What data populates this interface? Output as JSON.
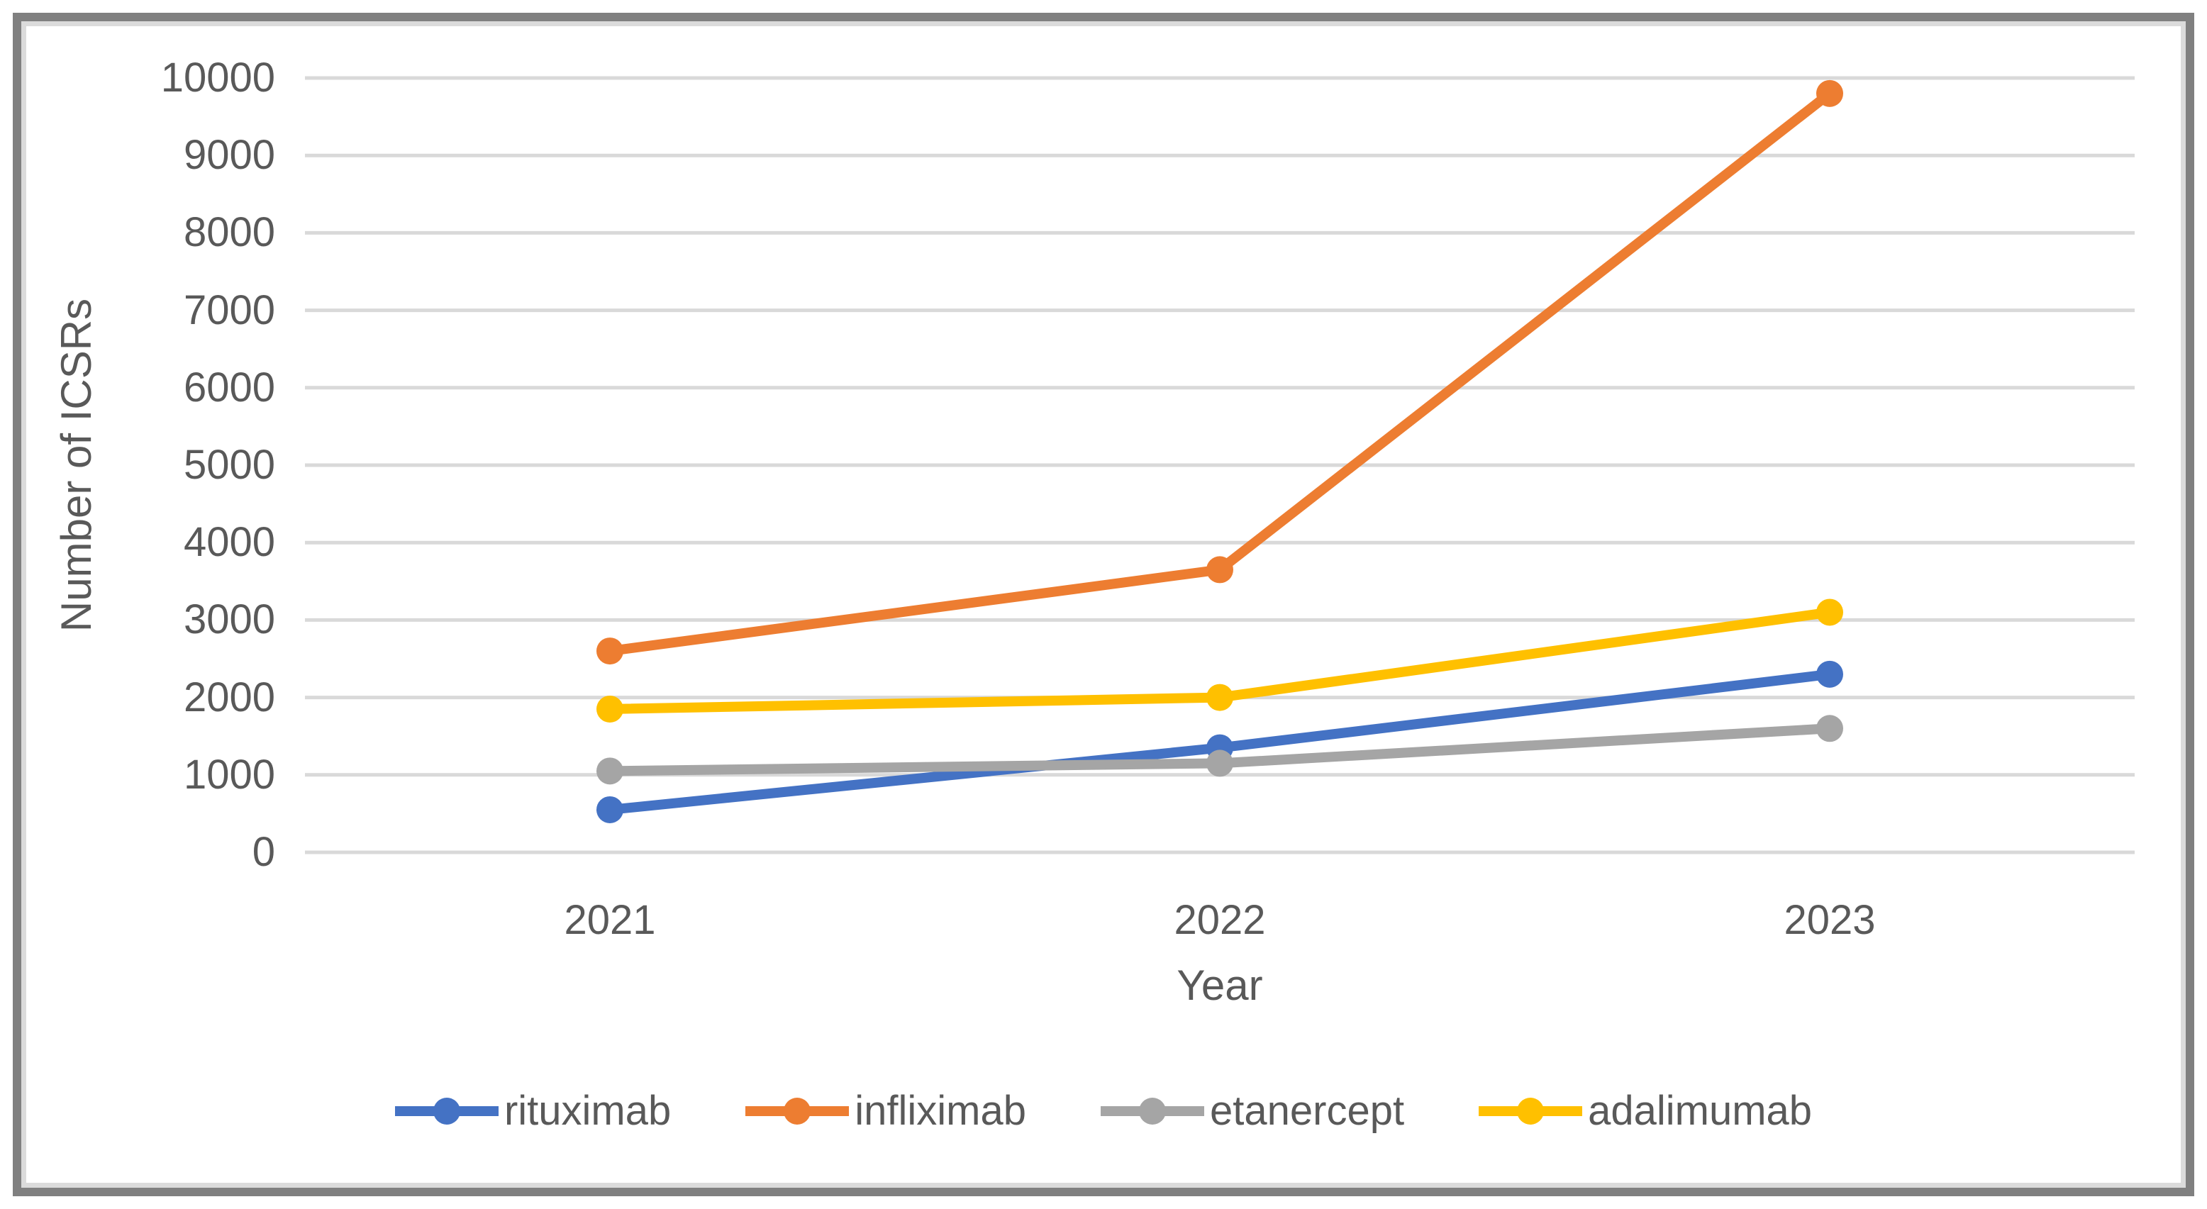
{
  "page": {
    "background": "#FFFFFF",
    "frame_border_color": "#808080",
    "frame_inner_line_color": "#DBDBDB"
  },
  "chart_data": {
    "type": "line",
    "title": "",
    "xlabel": "Year",
    "ylabel": "Number of ICSRs",
    "categories": [
      "2021",
      "2022",
      "2023"
    ],
    "series": [
      {
        "name": "rituximab",
        "color": "#4472C4",
        "values": [
          550,
          1350,
          2300
        ]
      },
      {
        "name": "infliximab",
        "color": "#ED7D31",
        "values": [
          2600,
          3650,
          9800
        ]
      },
      {
        "name": "etanercept",
        "color": "#A5A5A5",
        "values": [
          1050,
          1150,
          1600
        ]
      },
      {
        "name": "adalimumab",
        "color": "#FFC000",
        "values": [
          1850,
          2000,
          3100
        ]
      }
    ],
    "ylim": [
      0,
      10000
    ],
    "ytick_step": 1000,
    "yticks": [
      "0",
      "1000",
      "2000",
      "3000",
      "4000",
      "5000",
      "6000",
      "7000",
      "8000",
      "9000",
      "10000"
    ],
    "grid": "horizontal",
    "gridline_color": "#D9D9D9",
    "text_color": "#595959",
    "legend_position": "bottom",
    "marker": "circle",
    "line_width": 14,
    "marker_radius": 19
  }
}
